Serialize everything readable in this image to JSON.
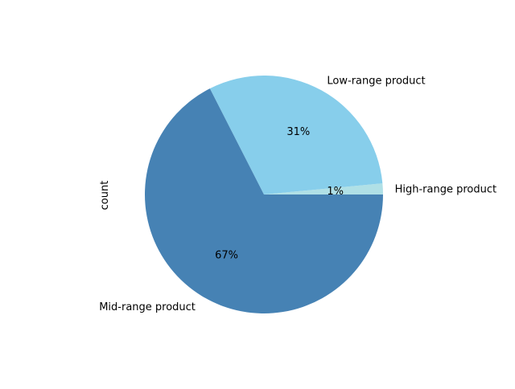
{
  "chart_data": {
    "type": "pie",
    "title": "",
    "ylabel": "count",
    "slices": [
      {
        "label": "High-range product",
        "value": 1.5,
        "pct_label": "1%",
        "color": "#b0e0e6"
      },
      {
        "label": "Low-range product",
        "value": 31.0,
        "pct_label": "31%",
        "color": "#87ceeb"
      },
      {
        "label": "Mid-range product",
        "value": 67.5,
        "pct_label": "67%",
        "color": "#4682b4"
      }
    ]
  }
}
